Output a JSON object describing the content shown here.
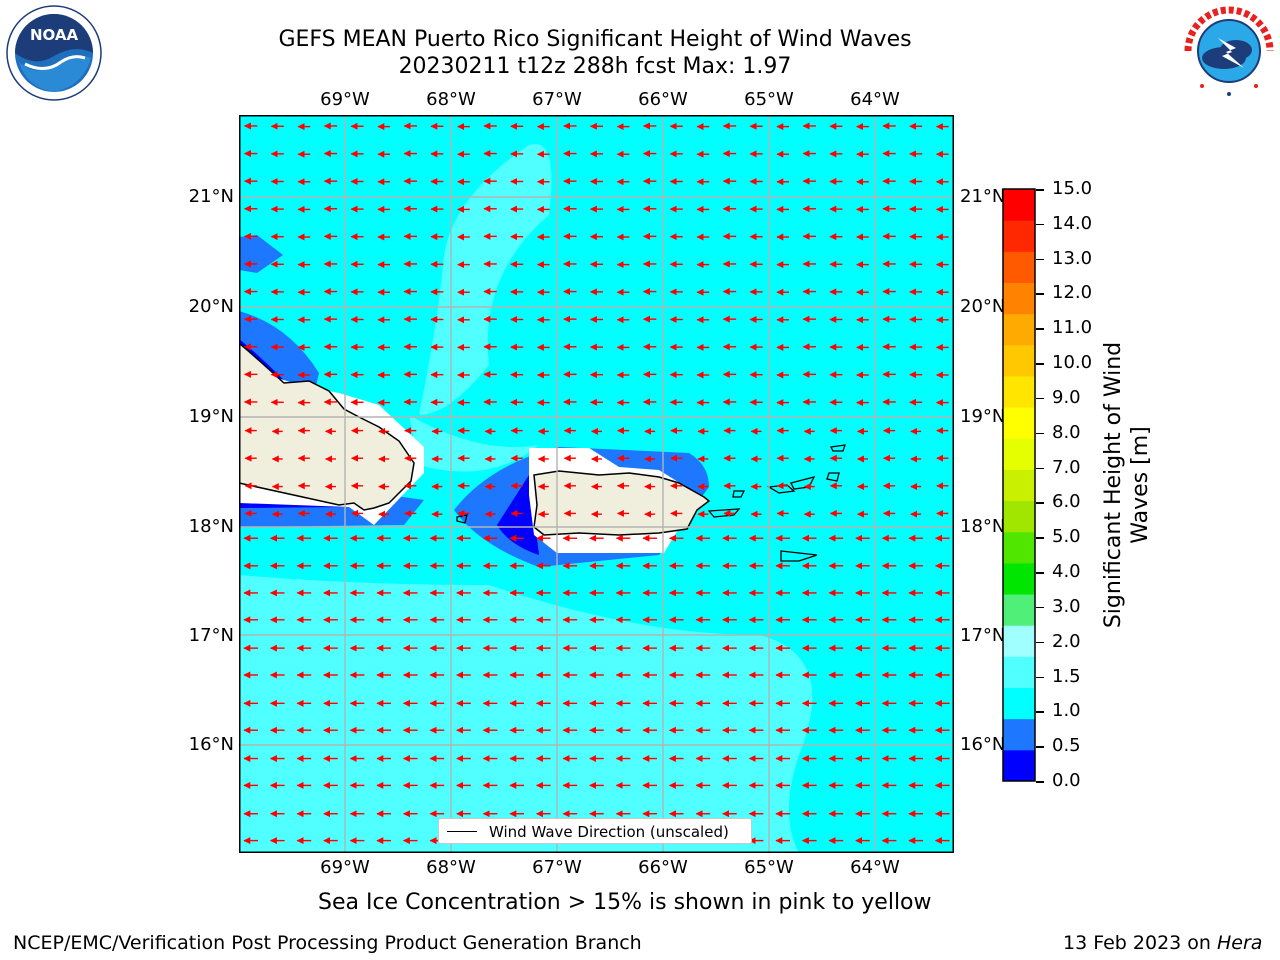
{
  "title": {
    "line1": "GEFS MEAN Puerto Rico Significant Height of Wind Waves",
    "line2": "20230211 t12z 288h fcst   Max: 1.97"
  },
  "axes": {
    "lon_labels": [
      "69°W",
      "68°W",
      "67°W",
      "66°W",
      "65°W",
      "64°W"
    ],
    "lat_labels": [
      "21°N",
      "20°N",
      "19°N",
      "18°N",
      "17°N",
      "16°N"
    ]
  },
  "colorbar": {
    "label": "Significant Height of Wind Waves [m]",
    "ticks": [
      "15.0",
      "14.0",
      "13.0",
      "12.0",
      "11.0",
      "10.0",
      "9.0",
      "8.0",
      "7.0",
      "6.0",
      "5.0",
      "4.0",
      "3.0",
      "2.0",
      "1.5",
      "1.0",
      "0.5",
      "0.0"
    ],
    "colors": [
      "#0000ff",
      "#1e78ff",
      "#00ffff",
      "#50ffff",
      "#a0ffff",
      "#50f078",
      "#00e600",
      "#50e600",
      "#a0e600",
      "#c8f000",
      "#e6ff00",
      "#ffff00",
      "#ffe600",
      "#ffc800",
      "#ffaa00",
      "#ff8200",
      "#ff5a00",
      "#ff2800",
      "#ff0000"
    ]
  },
  "legend": {
    "label": "Wind Wave Direction (unscaled)"
  },
  "notes": {
    "sea_ice": "Sea Ice Concentration > 15% is shown in pink to yellow",
    "branch": "NCEP/EMC/Verification Post Processing Product Generation Branch",
    "date": "13 Feb 2023 on ",
    "machine": "Hera"
  },
  "logos": {
    "left": "NOAA",
    "right": "NATIONAL WEATHER SERVICE"
  },
  "colors": {
    "land": "#f0eedc",
    "arrow": "#ff0000",
    "grid": "#b4b4b4"
  }
}
